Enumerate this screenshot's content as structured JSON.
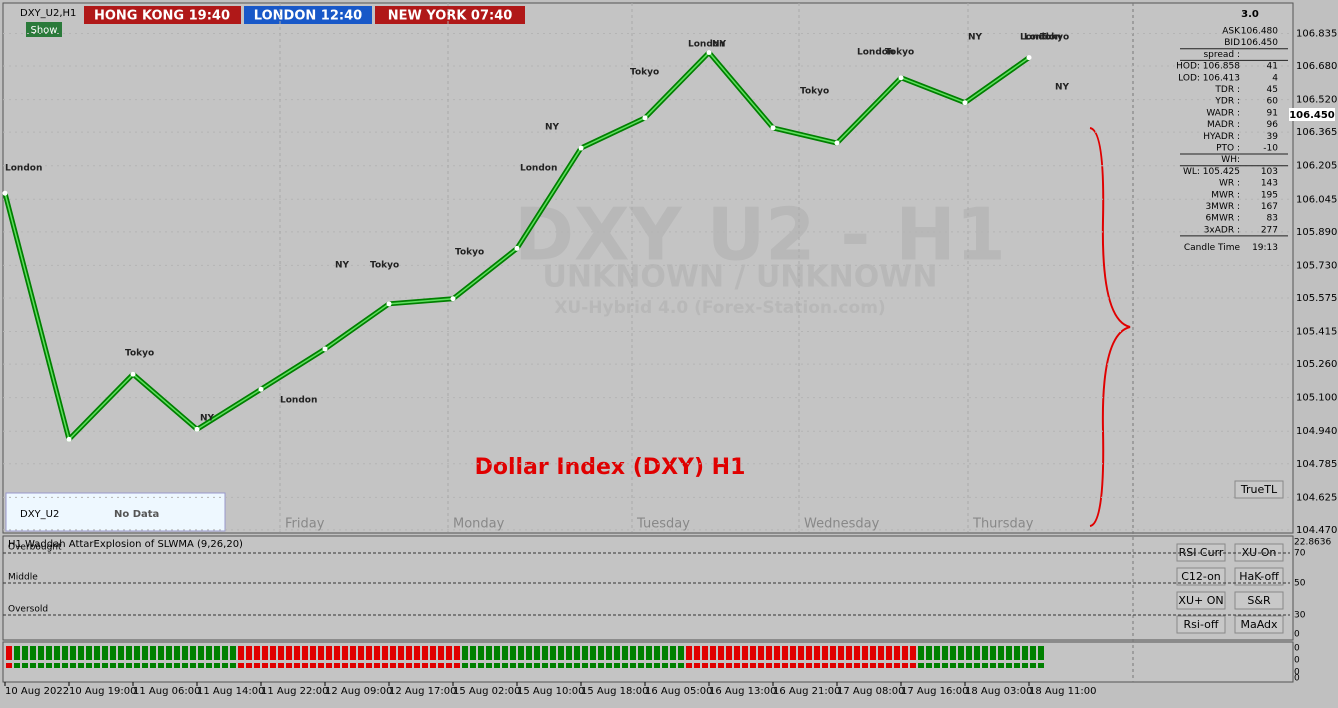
{
  "header": {
    "symbol": "DXY_U2,H1",
    "clocks": [
      "HONG KONG 19:40",
      "LONDON  12:40",
      "NEW YORK  07:40"
    ],
    "show_button": "Show"
  },
  "watermark": {
    "symbol": "DXY U2 - H1",
    "names": "UNKNOWN / UNKNOWN",
    "tool": "XU-Hybrid 4.0 (Forex-Station.com)"
  },
  "current_price": "106.450",
  "weekdays": [
    "Friday",
    "Monday",
    "Tuesday",
    "Wednesday",
    "Thursday"
  ],
  "sessions": [
    "London",
    "Tokyo",
    "NY",
    "London",
    "NY",
    "Tokyo",
    "Tokyo",
    "London",
    "NY",
    "Tokyo",
    "London",
    "NY",
    "Tokyo",
    "London",
    "Tokyo",
    "NY",
    "London",
    "Tokyo",
    "London",
    "NY"
  ],
  "no_data_box": {
    "symbol": "DXY_U2",
    "status": "No Data"
  },
  "panel": {
    "version": "3.0",
    "rows": [
      [
        "ASK",
        "106.480"
      ],
      [
        "BID",
        "106.450"
      ],
      [
        "spread :",
        ""
      ],
      [
        "HOD: 106.858",
        "41"
      ],
      [
        "LOD: 106.413",
        "4"
      ],
      [
        "TDR :",
        "45"
      ],
      [
        "YDR :",
        "60"
      ],
      [
        "WADR :",
        "91"
      ],
      [
        "MADR :",
        "96"
      ],
      [
        "HYADR :",
        "39"
      ],
      [
        "PTO :",
        "-10"
      ],
      [
        "WH:",
        ""
      ],
      [
        "WL: 105.425",
        "103"
      ],
      [
        "WR :",
        "143"
      ],
      [
        "MWR :",
        "195"
      ],
      [
        "3MWR :",
        "167"
      ],
      [
        "6MWR :",
        "83"
      ],
      [
        "3xADR :",
        "277"
      ],
      [
        "Candle Time",
        "19:13"
      ]
    ]
  },
  "buttons": [
    "RSI Curr",
    "XU On",
    "C12-on",
    "HaK-off",
    "XU+ ON",
    "S&R",
    "Rsi-off",
    "MaAdx",
    "TrueTL"
  ],
  "indicator": {
    "title": "H1 Waddah AttarExplosion of SLWMA (9,26,20)",
    "levels": [
      "Overbought",
      "Middle",
      "Oversold"
    ],
    "scale": [
      "22.8636",
      "70",
      "50",
      "30",
      "0"
    ],
    "sub_scale": [
      "0",
      "0",
      "0",
      "0"
    ]
  },
  "chart_data": {
    "type": "line",
    "title": "Dollar Index (DXY) H1",
    "categories": [
      "10 Aug 2022",
      "10 Aug 19:00",
      "11 Aug 06:00",
      "11 Aug 14:00",
      "11 Aug 22:00",
      "12 Aug 09:00",
      "12 Aug 17:00",
      "15 Aug 02:00",
      "15 Aug 10:00",
      "15 Aug 18:00",
      "16 Aug 05:00",
      "16 Aug 13:00",
      "16 Aug 21:00",
      "17 Aug 08:00",
      "17 Aug 16:00",
      "18 Aug 03:00",
      "18 Aug 11:00"
    ],
    "series": [
      {
        "name": "DXY_U2",
        "color": "#008000",
        "values": [
          106.074,
          104.901,
          105.212,
          104.949,
          105.14,
          105.332,
          105.547,
          105.571,
          105.811,
          106.289,
          106.433,
          106.744,
          106.385,
          106.313,
          106.624,
          106.505,
          106.72
        ]
      }
    ],
    "ylim": [
      104.46,
      106.98
    ],
    "yticks": [
      106.835,
      {
        "value": 106.68,
        "label": "106.680"
      },
      {
        "value": 106.52,
        "label": "106.520"
      },
      106.365,
      106.205,
      106.045,
      {
        "value": 105.89,
        "label": "105.890"
      },
      {
        "value": 105.73,
        "label": "105.730"
      },
      105.575,
      105.415,
      {
        "value": 105.26,
        "label": "105.260"
      },
      {
        "value": 105.1,
        "label": "105.100"
      },
      {
        "value": 104.94,
        "label": "104.940"
      },
      104.785,
      104.625,
      {
        "value": 104.47,
        "label": "104.470"
      }
    ],
    "grid": true
  }
}
